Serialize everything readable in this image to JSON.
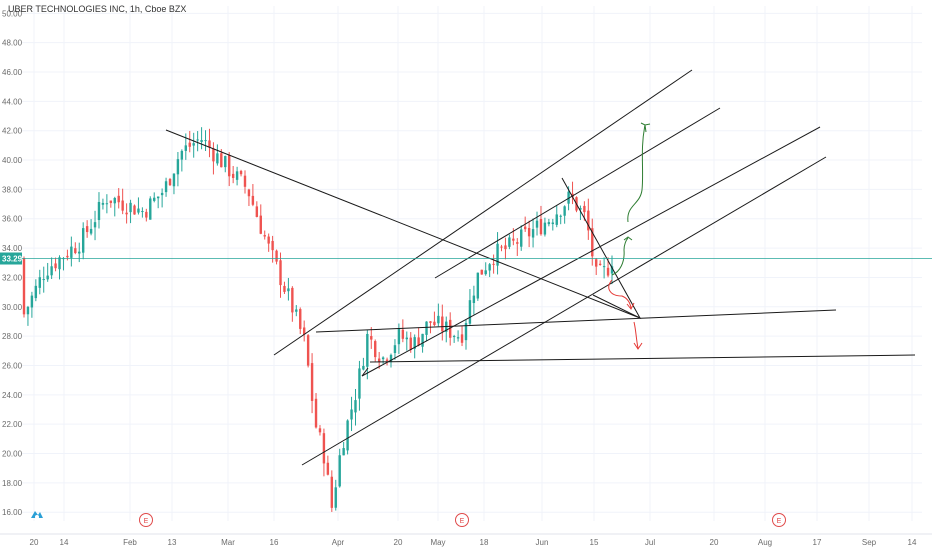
{
  "header": {
    "title": "UBER TECHNOLOGIES INC, 1h, Cboe BZX"
  },
  "colors": {
    "up": "#26a69a",
    "down": "#ef5350",
    "grid": "#f0f3fa",
    "trendline": "#1a1a1a",
    "price_line": "#26a69a",
    "arrow_green": "#2e7d32",
    "arrow_red": "#e53935",
    "earnings": "#e04a4a",
    "logo": "#2a9fd6"
  },
  "chart_data": {
    "type": "candlestick",
    "title": "UBER TECHNOLOGIES INC, 1h, Cboe BZX",
    "ylim": [
      15.4,
      50.5
    ],
    "y_ticks": [
      "50.00",
      "48.00",
      "46.00",
      "44.00",
      "42.00",
      "40.00",
      "38.00",
      "36.00",
      "34.00",
      "32.00",
      "30.00",
      "28.00",
      "26.00",
      "24.00",
      "22.00",
      "20.00",
      "18.00",
      "16.00"
    ],
    "x_ticks": [
      "20",
      "14",
      "Feb",
      "13",
      "Mar",
      "16",
      "Apr",
      "20",
      "May",
      "18",
      "Jun",
      "15",
      "Jul",
      "20",
      "Aug",
      "17",
      "Sep",
      "14"
    ],
    "last_price": "33.29",
    "earnings_markers": [
      "E",
      "E",
      "E"
    ],
    "approx_close_path": [
      [
        1,
        29.5
      ],
      [
        5,
        32.5
      ],
      [
        12,
        34.5
      ],
      [
        17,
        37.5
      ],
      [
        24,
        36.5
      ],
      [
        28,
        38.0
      ],
      [
        31,
        40.5
      ],
      [
        35,
        41.5
      ],
      [
        40,
        39.5
      ],
      [
        44,
        38.0
      ],
      [
        48,
        34.0
      ],
      [
        52,
        30.5
      ],
      [
        55,
        27.5
      ],
      [
        57,
        22.0
      ],
      [
        59,
        19.5
      ],
      [
        60,
        16.0
      ],
      [
        62,
        20.5
      ],
      [
        65,
        24.5
      ],
      [
        67,
        28.0
      ],
      [
        70,
        26.5
      ],
      [
        73,
        28.0
      ],
      [
        76,
        27.5
      ],
      [
        79,
        29.0
      ],
      [
        82,
        28.5
      ],
      [
        85,
        28.0
      ],
      [
        88,
        32.0
      ],
      [
        91,
        33.5
      ],
      [
        94,
        34.0
      ],
      [
        98,
        35.0
      ],
      [
        102,
        36.0
      ],
      [
        106,
        37.5
      ],
      [
        109,
        36.0
      ],
      [
        111,
        32.0
      ],
      [
        113,
        32.5
      ],
      [
        114,
        33.3
      ]
    ]
  },
  "ui": {
    "logo_name": "tradingview-logo"
  }
}
